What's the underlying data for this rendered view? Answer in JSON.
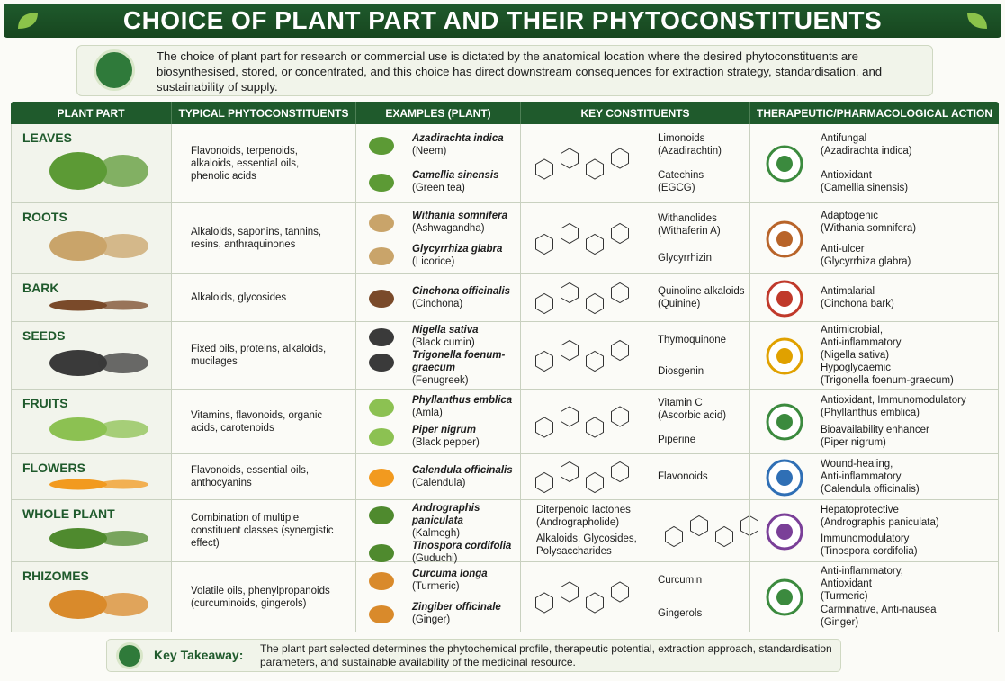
{
  "header": {
    "title": "CHOICE OF PLANT PART AND THEIR PHYTOCONSTITUENTS"
  },
  "intro": "The choice of plant part for research or commercial use is dictated by the anatomical location where the desired phytoconstituents are biosynthesised, stored, or concentrated, and this choice has direct downstream consequences for extraction strategy, standardisation, and sustainability of supply.",
  "table": {
    "columns": [
      "PLANT PART",
      "TYPICAL PHYTOCONSTITUENTS",
      "EXAMPLES (PLANT)",
      "KEY CONSTITUENTS",
      "THERAPEUTIC/PHARMACOLOGICAL ACTION"
    ],
    "rows": [
      {
        "part": "LEAVES",
        "constituents": "Flavonoids, terpenoids, alkaloids, essential oils, phenolic acids",
        "examples": [
          {
            "name": "Azadirachta indica",
            "common": "(Neem)"
          },
          {
            "name": "Camellia sinensis",
            "common": "(Green tea)"
          }
        ],
        "key": [
          [
            "Limonoids",
            "(Azadirachtin)"
          ],
          [
            "Catechins",
            "(EGCG)"
          ]
        ],
        "actions": [
          [
            "Antifungal",
            "(Azadirachta indica)"
          ],
          [
            "Antioxidant",
            "(Camellia sinensis)"
          ]
        ]
      },
      {
        "part": "ROOTS",
        "constituents": "Alkaloids, saponins, tannins, resins, anthraquinones",
        "examples": [
          {
            "name": "Withania somnifera",
            "common": "(Ashwagandha)"
          },
          {
            "name": "Glycyrrhiza glabra",
            "common": "(Licorice)"
          }
        ],
        "key": [
          [
            "Withanolides",
            "(Withaferin A)"
          ],
          [
            "Glycyrrhizin"
          ]
        ],
        "actions": [
          [
            "Adaptogenic",
            "(Withania somnifera)"
          ],
          [
            "Anti-ulcer",
            "(Glycyrrhiza glabra)"
          ]
        ]
      },
      {
        "part": "BARK",
        "constituents": "Alkaloids, glycosides",
        "examples": [
          {
            "name": "Cinchona officinalis",
            "common": "(Cinchona)"
          }
        ],
        "key": [
          [
            "Quinoline alkaloids",
            "(Quinine)"
          ]
        ],
        "actions": [
          [
            "Antimalarial",
            "(Cinchona bark)"
          ]
        ]
      },
      {
        "part": "SEEDS",
        "constituents": "Fixed oils, proteins, alkaloids, mucilages",
        "examples": [
          {
            "name": "Nigella sativa",
            "common": "(Black cumin)"
          },
          {
            "name": "Trigonella foenum-graecum",
            "common": "(Fenugreek)"
          }
        ],
        "key": [
          [
            "Thymoquinone"
          ],
          [
            "Diosgenin"
          ]
        ],
        "actions": [
          [
            "Antimicrobial,",
            "Anti-inflammatory",
            "(Nigella sativa)"
          ],
          [
            "Hypoglycaemic",
            "(Trigonella foenum-graecum)"
          ]
        ]
      },
      {
        "part": "FRUITS",
        "constituents": "Vitamins, flavonoids, organic acids, carotenoids",
        "examples": [
          {
            "name": "Phyllanthus emblica",
            "common": "(Amla)"
          },
          {
            "name": "Piper nigrum",
            "common": "(Black pepper)"
          }
        ],
        "key": [
          [
            "Vitamin C",
            "(Ascorbic acid)"
          ],
          [
            "Piperine"
          ]
        ],
        "actions": [
          [
            "Antioxidant, Immunomodulatory",
            "(Phyllanthus emblica)"
          ],
          [
            "Bioavailability enhancer",
            "(Piper nigrum)"
          ]
        ]
      },
      {
        "part": "FLOWERS",
        "constituents": "Flavonoids, essential oils, anthocyanins",
        "examples": [
          {
            "name": "Calendula officinalis",
            "common": "(Calendula)"
          }
        ],
        "key": [
          [
            "Flavonoids"
          ]
        ],
        "actions": [
          [
            "Wound-healing,",
            "Anti-inflammatory",
            "(Calendula officinalis)"
          ]
        ]
      },
      {
        "part": "WHOLE PLANT",
        "constituents": "Combination of multiple constituent classes (synergistic effect)",
        "examples": [
          {
            "name": "Andrographis paniculata",
            "common": "(Kalmegh)"
          },
          {
            "name": "Tinospora cordifolia",
            "common": "(Guduchi)"
          }
        ],
        "key": [
          [
            "Diterpenoid lactones",
            "(Andrographolide)"
          ],
          [
            "Alkaloids, Glycosides,",
            "Polysaccharides"
          ]
        ],
        "actions": [
          [
            "Hepatoprotective",
            "(Andrographis paniculata)"
          ],
          [
            "Immunomodulatory",
            "(Tinospora cordifolia)"
          ]
        ]
      },
      {
        "part": "RHIZOMES",
        "constituents": "Volatile oils, phenylpropanoids (curcuminoids, gingerols)",
        "examples": [
          {
            "name": "Curcuma longa",
            "common": "(Turmeric)"
          },
          {
            "name": "Zingiber officinale",
            "common": "(Ginger)"
          }
        ],
        "key": [
          [
            "Curcumin"
          ],
          [
            "Gingerols"
          ]
        ],
        "actions": [
          [
            "Anti-inflammatory,",
            "Antioxidant",
            "(Turmeric)"
          ],
          [
            "Carminative, Anti-nausea",
            "(Ginger)"
          ]
        ]
      }
    ]
  },
  "takeaway": {
    "label": "Key Takeaway:",
    "text": "The plant part selected determines the phytochemical profile, therapeutic potential, extraction approach, standardisation parameters, and sustainable availability of the medicinal resource."
  }
}
